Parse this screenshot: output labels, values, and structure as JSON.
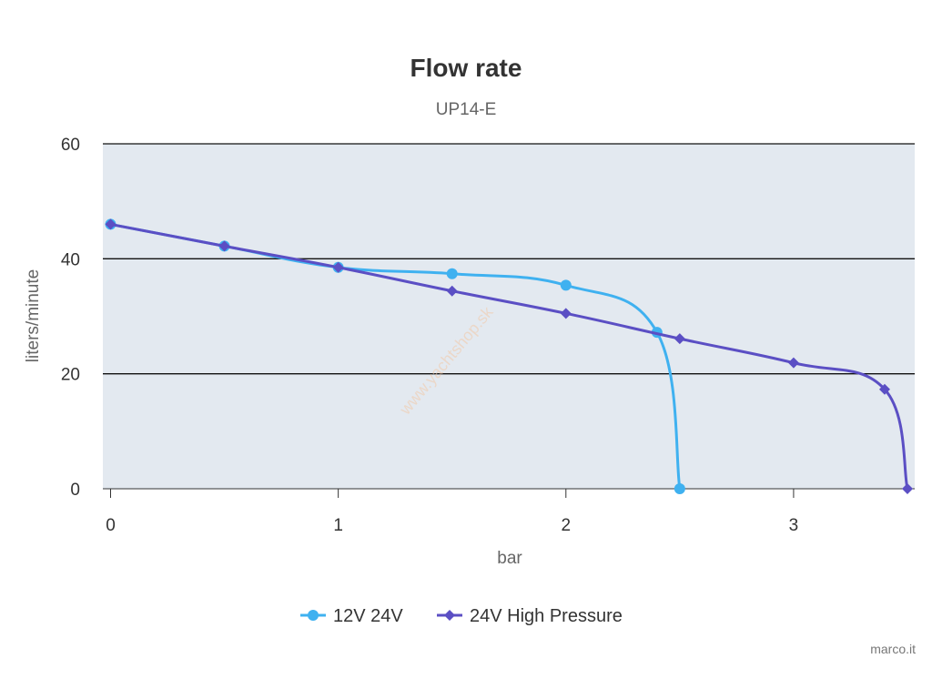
{
  "chart_data": {
    "type": "line",
    "title": "Flow rate",
    "subtitle": "UP14-E",
    "xlabel": "bar",
    "ylabel": "liters/minute",
    "xlim": [
      0,
      3.5
    ],
    "ylim": [
      0,
      60
    ],
    "x_ticks": [
      "0",
      "1",
      "2",
      "3"
    ],
    "y_ticks": [
      "0",
      "20",
      "40",
      "60"
    ],
    "grid": true,
    "legend_position": "bottom-center",
    "series": [
      {
        "name": "12V 24V",
        "color": "#3fb1f0",
        "marker": "circle",
        "points": [
          [
            0,
            46
          ],
          [
            0.5,
            42.2
          ],
          [
            1,
            38.5
          ],
          [
            1.5,
            37.4
          ],
          [
            2,
            35.4
          ],
          [
            2.4,
            27.2
          ],
          [
            2.5,
            0
          ]
        ]
      },
      {
        "name": "24V High Pressure",
        "color": "#5b4fc4",
        "marker": "diamond",
        "points": [
          [
            0,
            46
          ],
          [
            0.5,
            42.2
          ],
          [
            1,
            38.5
          ],
          [
            1.5,
            34.4
          ],
          [
            2,
            30.5
          ],
          [
            2.5,
            26.1
          ],
          [
            3,
            21.9
          ],
          [
            3.4,
            17.3
          ],
          [
            3.5,
            0
          ]
        ]
      }
    ],
    "watermark": "www.yachtshop.sk",
    "credit": "marco.it"
  }
}
